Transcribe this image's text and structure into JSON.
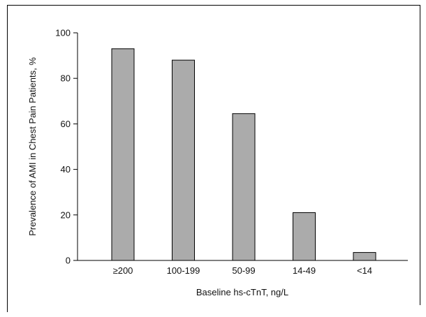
{
  "chart_data": {
    "type": "bar",
    "categories": [
      "≥200",
      "100-199",
      "50-99",
      "14-49",
      "<14"
    ],
    "values": [
      93,
      88,
      64.5,
      21,
      3.5
    ],
    "xlabel": "Baseline hs-cTnT, ng/L",
    "ylabel": "Prevalence of AMI in Chest Pain Patients, %",
    "ylim": [
      0,
      100
    ],
    "yticks": [
      0,
      20,
      40,
      60,
      80,
      100
    ],
    "grid": false,
    "bar_color": "#ababab"
  }
}
